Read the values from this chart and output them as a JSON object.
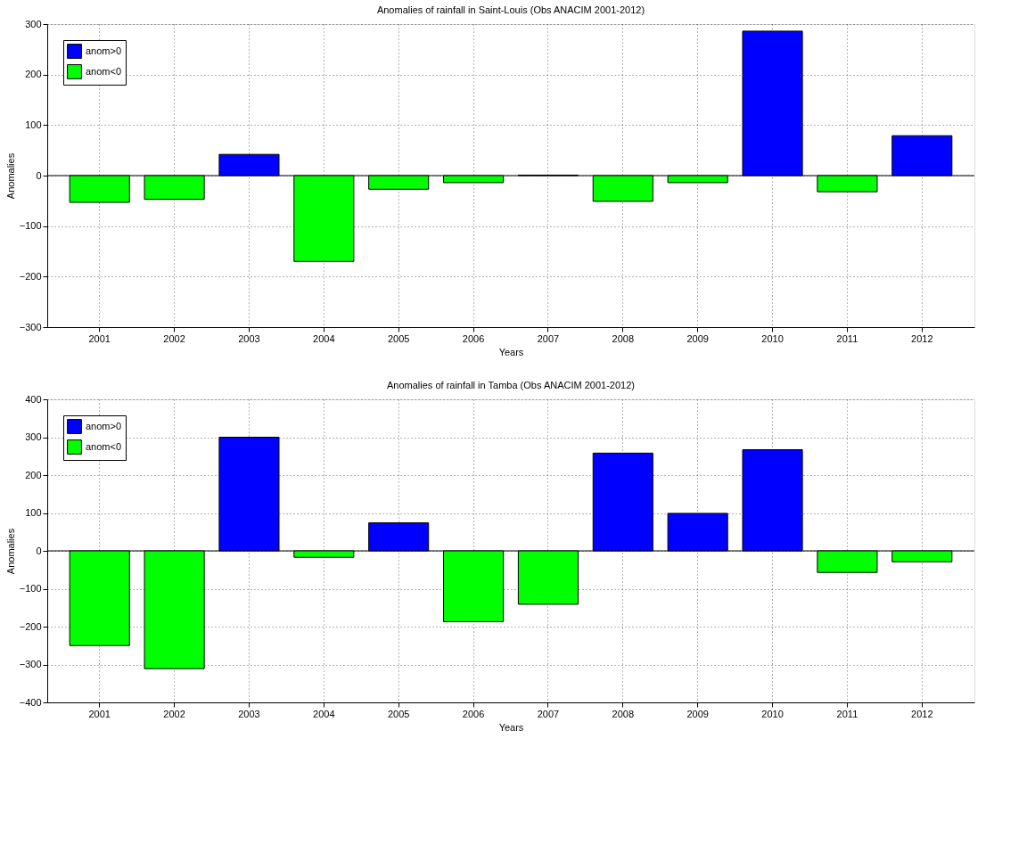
{
  "chart_data": [
    {
      "type": "bar",
      "title": "Anomalies of rainfall in Saint-Louis (Obs ANACIM 2001-2012)",
      "xlabel": "Years",
      "ylabel": "Anomalies",
      "categories": [
        "2001",
        "2002",
        "2003",
        "2004",
        "2005",
        "2006",
        "2007",
        "2008",
        "2009",
        "2010",
        "2011",
        "2012"
      ],
      "series": [
        {
          "name": "anom>0",
          "color": "#0000ff",
          "values": [
            null,
            null,
            42,
            null,
            null,
            null,
            1,
            null,
            null,
            286,
            null,
            79
          ]
        },
        {
          "name": "anom<0",
          "color": "#00ff00",
          "values": [
            -53,
            -47,
            null,
            -170,
            -27,
            -14,
            null,
            -51,
            -14,
            null,
            -32,
            null
          ]
        }
      ],
      "ylim": [
        -300,
        300
      ],
      "yticks": [
        -300,
        -200,
        -100,
        0,
        100,
        200,
        300
      ],
      "grid": true,
      "legend": "top left",
      "ref_lines": [
        {
          "axis": "y",
          "value": 0
        }
      ]
    },
    {
      "type": "bar",
      "title": "Anomalies of rainfall in Tamba (Obs ANACIM 2001-2012)",
      "xlabel": "Years",
      "ylabel": "Anomalies",
      "categories": [
        "2001",
        "2002",
        "2003",
        "2004",
        "2005",
        "2006",
        "2007",
        "2008",
        "2009",
        "2010",
        "2011",
        "2012"
      ],
      "series": [
        {
          "name": "anom>0",
          "color": "#0000ff",
          "values": [
            null,
            null,
            300,
            null,
            74,
            null,
            null,
            258,
            99,
            267,
            null,
            null
          ]
        },
        {
          "name": "anom<0",
          "color": "#00ff00",
          "values": [
            -250,
            -311,
            null,
            -17,
            null,
            -187,
            -141,
            null,
            null,
            null,
            -57,
            -29
          ]
        }
      ],
      "ylim": [
        -400,
        400
      ],
      "yticks": [
        -400,
        -300,
        -200,
        -100,
        0,
        100,
        200,
        300,
        400
      ],
      "grid": true,
      "legend": "top left",
      "ref_lines": [
        {
          "axis": "y",
          "value": 0
        }
      ]
    }
  ]
}
